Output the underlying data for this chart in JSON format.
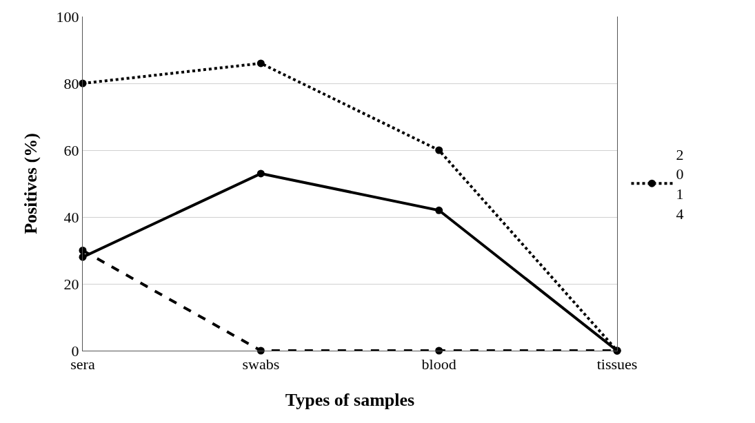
{
  "chart_data": {
    "type": "line",
    "xlabel": "Types of samples",
    "ylabel": "Positives (%)",
    "categories": [
      "sera",
      "swabs",
      "blood",
      "tissues"
    ],
    "series": [
      {
        "name": "2014",
        "color": "#000000",
        "line_style": "dotted",
        "values": [
          80,
          86,
          60,
          0
        ]
      },
      {
        "color": "#000000",
        "line_style": "solid",
        "values": [
          28,
          53,
          42,
          0
        ]
      },
      {
        "color": "#000000",
        "line_style": "dashed",
        "values": [
          30,
          0,
          0,
          0
        ]
      }
    ],
    "ylim": [
      0,
      100
    ],
    "yticks": [
      0,
      20,
      40,
      60,
      80,
      100
    ],
    "grid": "y",
    "legend": "right",
    "marker": "circle"
  }
}
